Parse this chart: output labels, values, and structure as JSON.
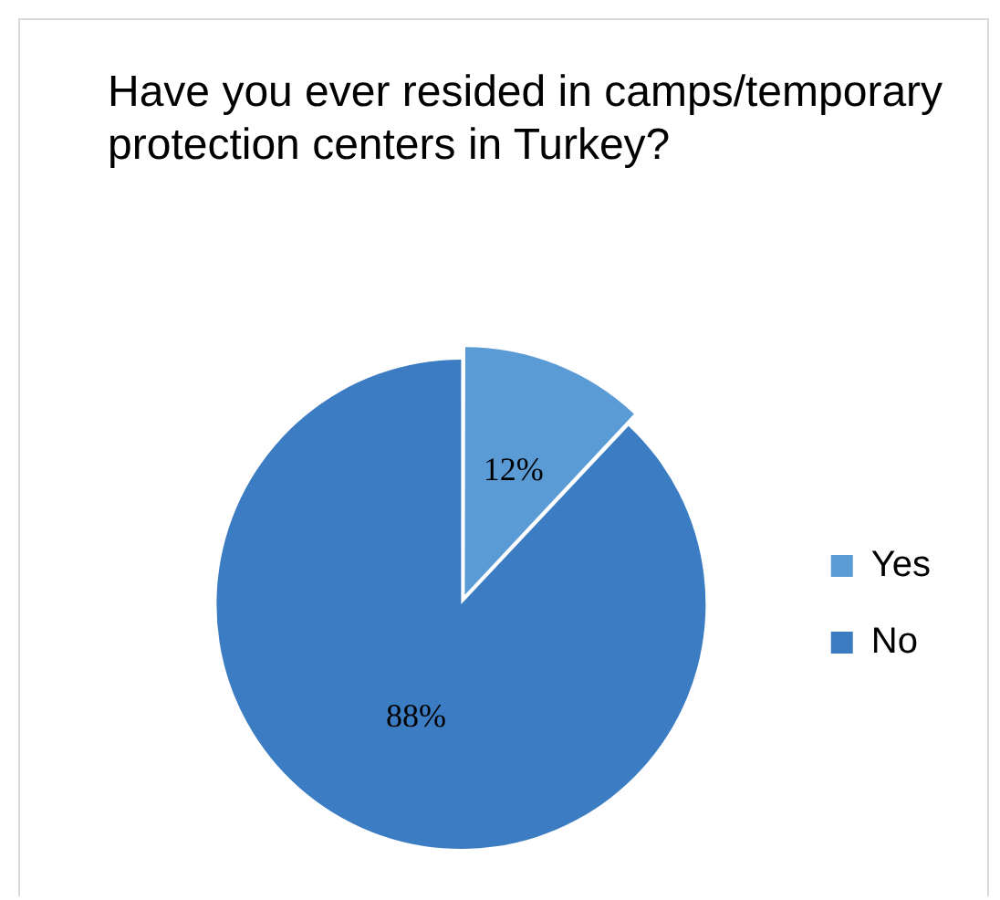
{
  "chart_data": {
    "type": "pie",
    "title": "Have you ever resided in camps/temporary protection centers in Turkey?",
    "categories": [
      "Yes",
      "No"
    ],
    "values": [
      12,
      88
    ],
    "colors": [
      "#5b9bd5",
      "#3b7cc2"
    ],
    "value_labels": [
      "12%",
      "88%"
    ],
    "legend": "right"
  }
}
